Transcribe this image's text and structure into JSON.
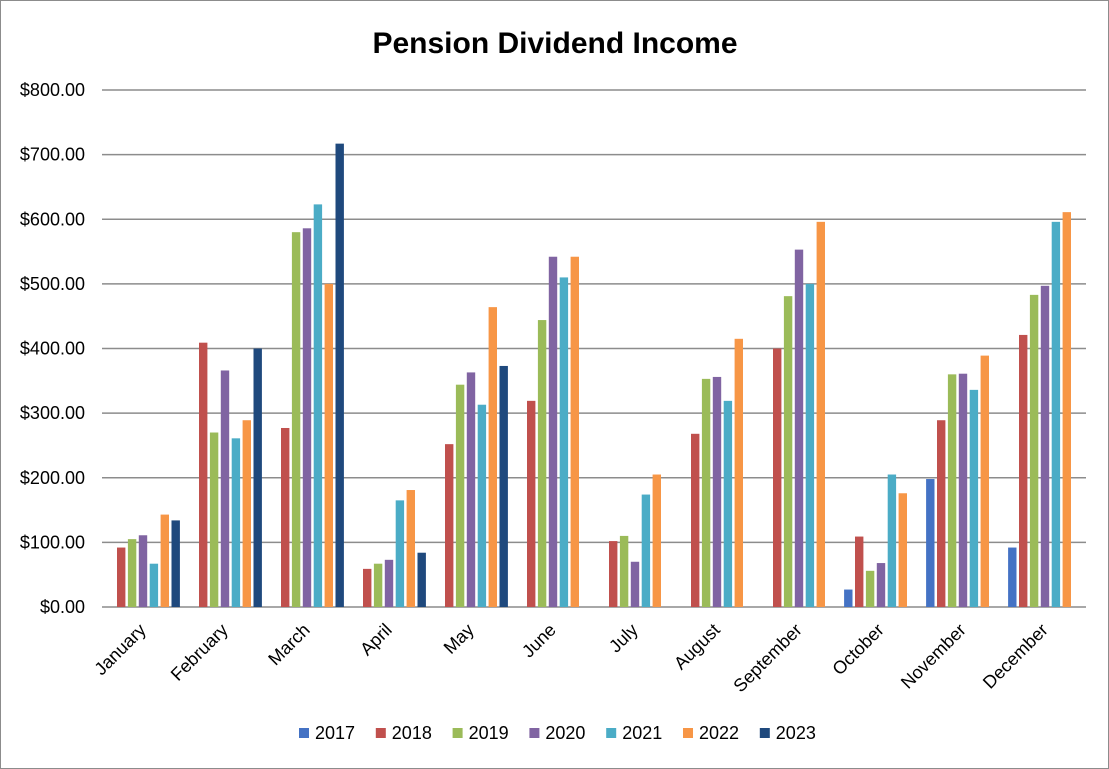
{
  "chart_data": {
    "type": "bar",
    "title": "Pension Dividend Income",
    "xlabel": "",
    "ylabel": "",
    "ylim": [
      0,
      800
    ],
    "yticks": [
      "$0.00",
      "$100.00",
      "$200.00",
      "$300.00",
      "$400.00",
      "$500.00",
      "$600.00",
      "$700.00",
      "$800.00"
    ],
    "categories": [
      "January",
      "February",
      "March",
      "April",
      "May",
      "June",
      "July",
      "August",
      "September",
      "October",
      "November",
      "December"
    ],
    "grid": true,
    "legend_position": "bottom",
    "series": [
      {
        "name": "2017",
        "color": "#4472C4",
        "values": [
          null,
          null,
          null,
          null,
          null,
          null,
          null,
          null,
          null,
          27,
          198,
          92
        ]
      },
      {
        "name": "2018",
        "color": "#C0504D",
        "values": [
          92,
          409,
          277,
          59,
          252,
          319,
          102,
          268,
          400,
          109,
          289,
          421
        ]
      },
      {
        "name": "2019",
        "color": "#9BBB59",
        "values": [
          105,
          270,
          580,
          67,
          344,
          444,
          110,
          353,
          481,
          56,
          360,
          483
        ]
      },
      {
        "name": "2020",
        "color": "#8064A2",
        "values": [
          111,
          366,
          586,
          73,
          363,
          542,
          70,
          356,
          553,
          68,
          361,
          497
        ]
      },
      {
        "name": "2021",
        "color": "#4BACC6",
        "values": [
          67,
          261,
          623,
          165,
          313,
          510,
          174,
          319,
          500,
          205,
          336,
          596
        ]
      },
      {
        "name": "2022",
        "color": "#F79646",
        "values": [
          143,
          289,
          500,
          181,
          464,
          542,
          205,
          415,
          596,
          176,
          389,
          611
        ]
      },
      {
        "name": "2023",
        "color": "#1F497D",
        "values": [
          134,
          400,
          717,
          84,
          373,
          null,
          null,
          null,
          null,
          null,
          null,
          null
        ]
      }
    ]
  }
}
